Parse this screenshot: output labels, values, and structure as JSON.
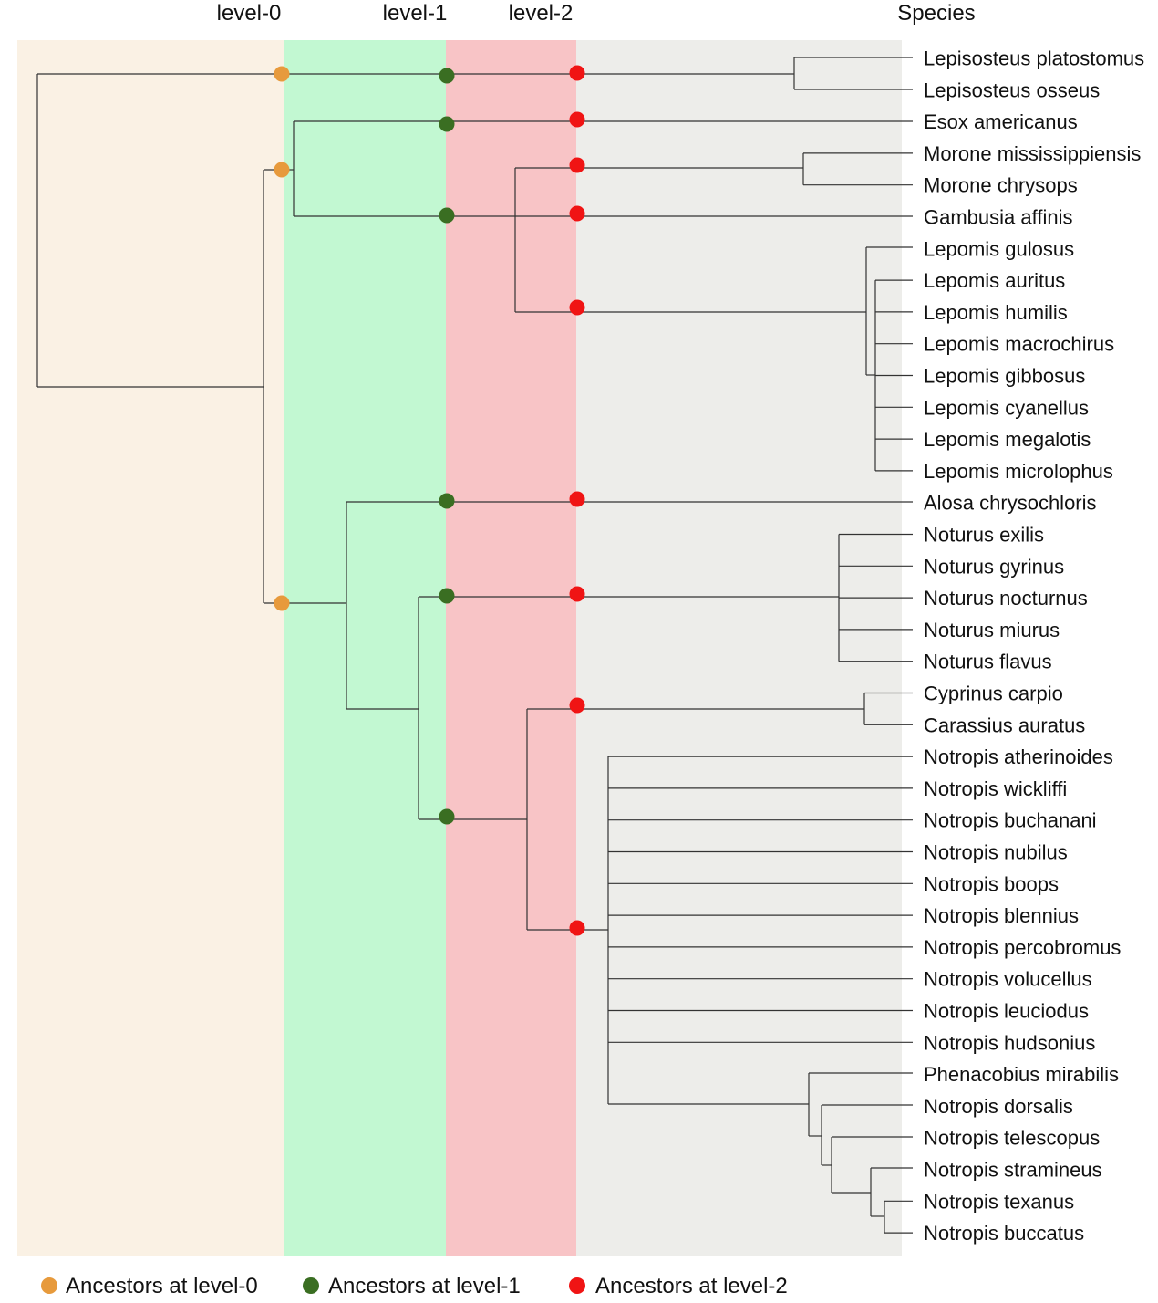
{
  "headers": {
    "level0": "level-0",
    "level1": "level-1",
    "level2": "level-2",
    "species": "Species"
  },
  "colors": {
    "band_level0": "#faf1e4",
    "band_level1": "#c2f8d2",
    "band_level2": "#f8c4c6",
    "band_species": "#ededea",
    "dot_level0": "#e79a3c",
    "dot_level1": "#3a6e22",
    "dot_level2": "#f01414"
  },
  "species": [
    "Lepisosteus platostomus",
    "Lepisosteus osseus",
    "Esox americanus",
    "Morone mississippiensis",
    "Morone chrysops",
    "Gambusia affinis",
    "Lepomis gulosus",
    "Lepomis auritus",
    "Lepomis humilis",
    "Lepomis macrochirus",
    "Lepomis gibbosus",
    "Lepomis cyanellus",
    "Lepomis megalotis",
    "Lepomis microlophus",
    "Alosa chrysochloris",
    "Noturus exilis",
    "Noturus gyrinus",
    "Noturus nocturnus",
    "Noturus miurus",
    "Noturus flavus",
    "Cyprinus carpio",
    "Carassius auratus",
    "Notropis atherinoides",
    "Notropis wickliffi",
    "Notropis buchanani",
    "Notropis nubilus",
    "Notropis boops",
    "Notropis blennius",
    "Notropis percobromus",
    "Notropis volucellus",
    "Notropis leuciodus",
    "Notropis hudsonius",
    "Phenacobius mirabilis",
    "Notropis dorsalis",
    "Notropis telescopus",
    "Notropis stramineus",
    "Notropis texanus",
    "Notropis buccatus"
  ],
  "legend": [
    {
      "label": "Ancestors at level-0",
      "color": "#e79a3c"
    },
    {
      "label": "Ancestors at level-1",
      "color": "#3a6e22"
    },
    {
      "label": "Ancestors at level-2",
      "color": "#f01414"
    }
  ]
}
